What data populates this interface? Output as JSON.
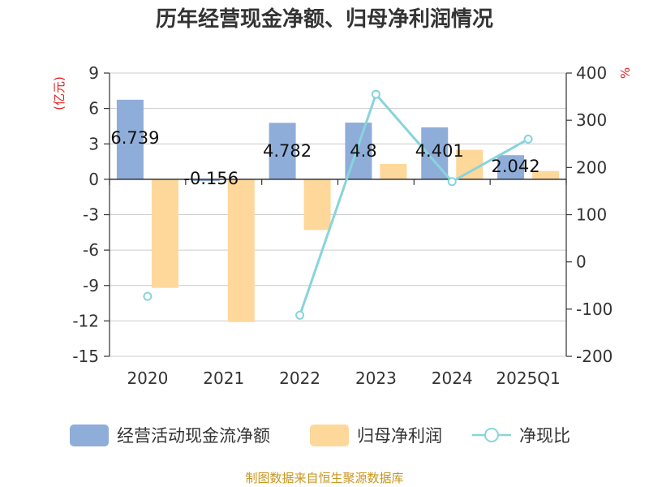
{
  "chart_data": {
    "type": "bar",
    "title": "历年经营现金净额、归母净利润情况",
    "categories": [
      "2020",
      "2021",
      "2022",
      "2023",
      "2024",
      "2025Q1"
    ],
    "left_axis": {
      "unit": "(亿元)",
      "ylim": [
        -15,
        9
      ],
      "ticks": [
        "9",
        "6",
        "3",
        "0",
        "-3",
        "-6",
        "-9",
        "-12",
        "-15"
      ]
    },
    "right_axis": {
      "unit": "%",
      "ylim": [
        -200,
        400
      ],
      "ticks": [
        "400",
        "300",
        "200",
        "100",
        "0",
        "-100",
        "-200"
      ]
    },
    "series": [
      {
        "name": "经营活动现金流净额",
        "kind": "bar",
        "axis": "left",
        "color": "#8fadd9",
        "values": [
          6.739,
          -0.156,
          4.782,
          4.8,
          4.401,
          2.042
        ],
        "labels": [
          "6.739",
          "-0.156",
          "4.782",
          "4.8",
          "4.401",
          "2.042"
        ]
      },
      {
        "name": "归母净利润",
        "kind": "bar",
        "axis": "left",
        "color": "#fdd89a",
        "values": [
          -9.2,
          -12.1,
          -4.3,
          1.3,
          2.5,
          0.7
        ]
      },
      {
        "name": "净现比",
        "kind": "line",
        "axis": "right",
        "color": "#88d4dc",
        "values": [
          -73,
          null,
          -113,
          355,
          170,
          260
        ]
      }
    ],
    "grid": true,
    "legend": "bottom"
  },
  "unit_color": "#e02020",
  "axis_color": "#333333",
  "grid_color": "#cccccc",
  "source": {
    "text": "制图数据来自恒生聚源数据库",
    "color": "#c8961e"
  }
}
